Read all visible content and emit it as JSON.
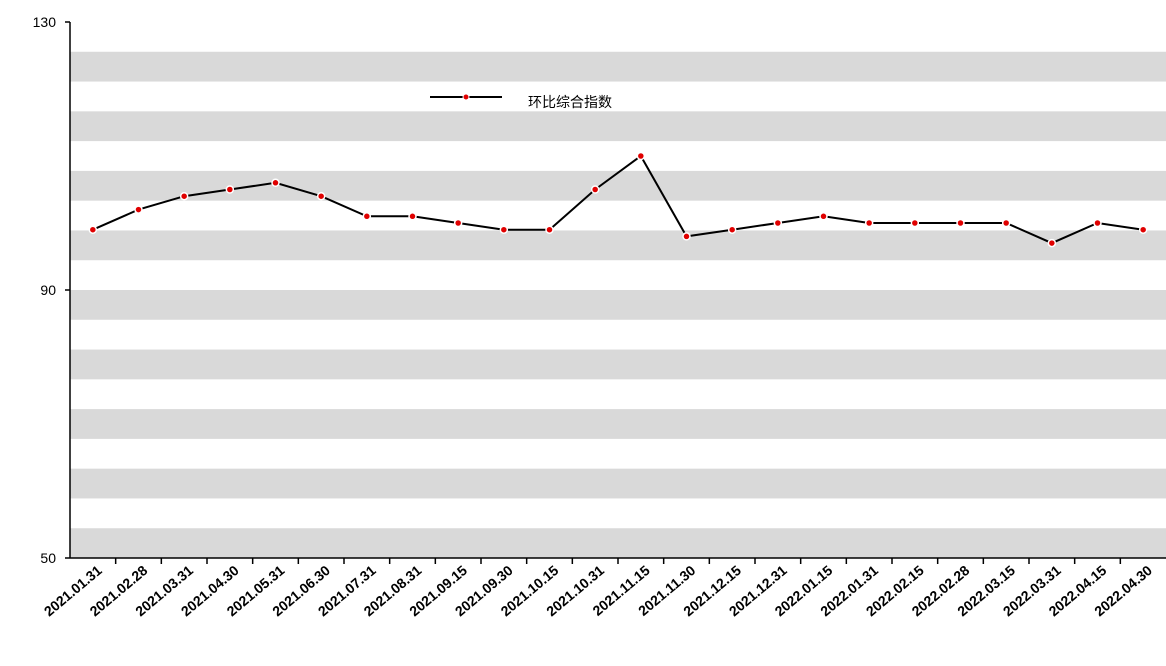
{
  "chart_data": {
    "type": "line",
    "categories": [
      "2021.01.31",
      "2021.02.28",
      "2021.03.31",
      "2021.04.30",
      "2021.05.31",
      "2021.06.30",
      "2021.07.31",
      "2021.08.31",
      "2021.09.15",
      "2021.09.30",
      "2021.10.15",
      "2021.10.31",
      "2021.11.15",
      "2021.11.30",
      "2021.12.15",
      "2021.12.31",
      "2022.01.15",
      "2022.01.31",
      "2022.02.15",
      "2022.02.28",
      "2022.03.15",
      "2022.03.31",
      "2022.04.15",
      "2022.04.30"
    ],
    "series": [
      {
        "name": "环比综合指数",
        "color": "#000000",
        "marker_color": "#e00000",
        "values": [
          99,
          102,
          104,
          105,
          106,
          104,
          101,
          101,
          100,
          99,
          99,
          105,
          110,
          98,
          99,
          100,
          101,
          100,
          100,
          100,
          100,
          97,
          100,
          99
        ]
      }
    ],
    "ylim": [
      50,
      130
    ],
    "yticks": [
      50,
      90,
      130
    ],
    "legend": "top"
  }
}
